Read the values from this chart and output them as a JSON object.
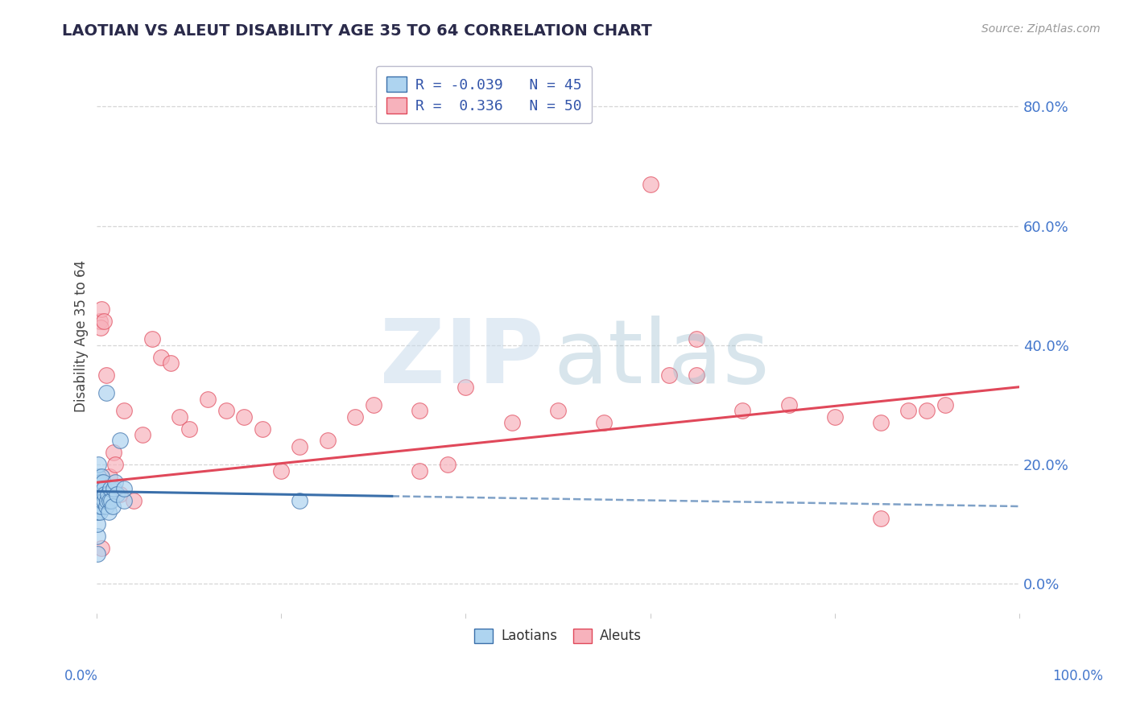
{
  "title": "LAOTIAN VS ALEUT DISABILITY AGE 35 TO 64 CORRELATION CHART",
  "source": "Source: ZipAtlas.com",
  "ylabel": "Disability Age 35 to 64",
  "legend_laotian_R": "-0.039",
  "legend_laotian_N": "45",
  "legend_aleut_R": "0.336",
  "legend_aleut_N": "50",
  "laotian_color": "#aed4f0",
  "aleut_color": "#f7b2bc",
  "laotian_line_color": "#3a6faa",
  "aleut_line_color": "#e0485a",
  "laotian_scatter_x": [
    0.001,
    0.001,
    0.001,
    0.001,
    0.001,
    0.002,
    0.002,
    0.002,
    0.002,
    0.002,
    0.002,
    0.003,
    0.003,
    0.003,
    0.003,
    0.003,
    0.004,
    0.004,
    0.004,
    0.005,
    0.005,
    0.005,
    0.006,
    0.006,
    0.007,
    0.007,
    0.008,
    0.008,
    0.009,
    0.01,
    0.01,
    0.011,
    0.012,
    0.013,
    0.014,
    0.015,
    0.016,
    0.017,
    0.018,
    0.02,
    0.022,
    0.025,
    0.03,
    0.22,
    0.03
  ],
  "laotian_scatter_y": [
    0.05,
    0.08,
    0.1,
    0.12,
    0.14,
    0.13,
    0.15,
    0.16,
    0.17,
    0.18,
    0.2,
    0.14,
    0.15,
    0.13,
    0.16,
    0.12,
    0.17,
    0.14,
    0.16,
    0.18,
    0.15,
    0.13,
    0.16,
    0.14,
    0.15,
    0.17,
    0.16,
    0.14,
    0.15,
    0.32,
    0.13,
    0.14,
    0.15,
    0.12,
    0.14,
    0.16,
    0.14,
    0.13,
    0.16,
    0.17,
    0.15,
    0.24,
    0.14,
    0.14,
    0.16
  ],
  "aleut_scatter_x": [
    0.003,
    0.004,
    0.005,
    0.006,
    0.007,
    0.008,
    0.01,
    0.014,
    0.018,
    0.02,
    0.025,
    0.03,
    0.04,
    0.05,
    0.06,
    0.07,
    0.08,
    0.09,
    0.1,
    0.12,
    0.14,
    0.16,
    0.18,
    0.2,
    0.22,
    0.25,
    0.28,
    0.3,
    0.35,
    0.38,
    0.4,
    0.45,
    0.5,
    0.55,
    0.6,
    0.65,
    0.65,
    0.7,
    0.75,
    0.8,
    0.85,
    0.85,
    0.88,
    0.9,
    0.92,
    0.62,
    0.005,
    0.005,
    0.01,
    0.35
  ],
  "aleut_scatter_y": [
    0.44,
    0.43,
    0.46,
    0.15,
    0.14,
    0.44,
    0.35,
    0.18,
    0.22,
    0.2,
    0.15,
    0.29,
    0.14,
    0.25,
    0.41,
    0.38,
    0.37,
    0.28,
    0.26,
    0.31,
    0.29,
    0.28,
    0.26,
    0.19,
    0.23,
    0.24,
    0.28,
    0.3,
    0.29,
    0.2,
    0.33,
    0.27,
    0.29,
    0.27,
    0.67,
    0.41,
    0.35,
    0.29,
    0.3,
    0.28,
    0.11,
    0.27,
    0.29,
    0.29,
    0.3,
    0.35,
    0.16,
    0.06,
    0.15,
    0.19
  ],
  "xlim": [
    0.0,
    1.0
  ],
  "ylim": [
    -0.05,
    0.88
  ],
  "yticks": [
    0.0,
    0.2,
    0.4,
    0.6,
    0.8
  ],
  "ytick_labels": [
    "0.0%",
    "20.0%",
    "40.0%",
    "60.0%",
    "80.0%"
  ],
  "laotian_trend_x0": 0.0,
  "laotian_trend_x_solid_end": 0.32,
  "laotian_trend_x_dash_end": 1.0,
  "laotian_trend_y0": 0.155,
  "laotian_trend_y_end": 0.13,
  "aleut_trend_y0": 0.17,
  "aleut_trend_y_end": 0.33,
  "background_color": "#ffffff",
  "grid_color": "#cccccc",
  "title_color": "#2a2a4a",
  "axis_label_color": "#4477cc",
  "legend_text_color": "#3355aa"
}
